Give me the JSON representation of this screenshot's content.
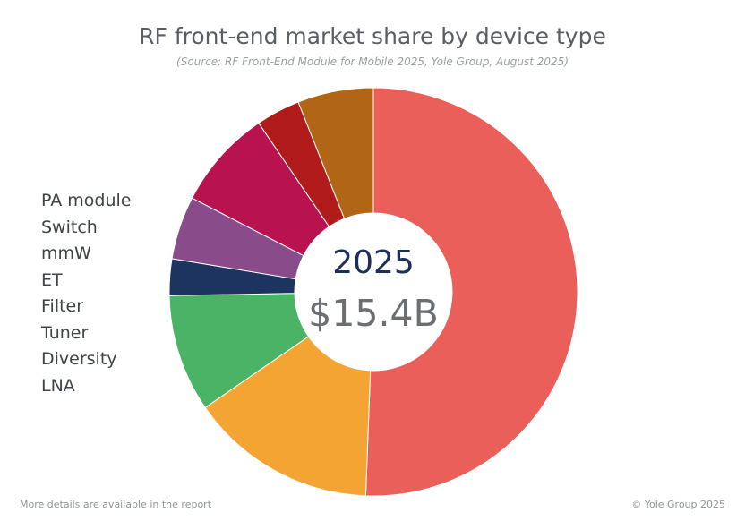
{
  "chart_data": {
    "type": "pie",
    "title": "RF front-end market share by device type",
    "subtitle": "(Source: RF Front-End Module for Mobile 2025, Yole Group, August 2025)",
    "center_year": "2025",
    "center_value": "$15.4B",
    "legend_position": "left",
    "categories": [
      "PA module",
      "Switch",
      "mmW",
      "ET",
      "Filter",
      "Tuner",
      "Diversity",
      "LNA"
    ],
    "slices": [
      {
        "name": "Filter",
        "value": 50.6,
        "color": "#ea5f5a"
      },
      {
        "name": "Switch",
        "value": 14.8,
        "color": "#f4a433"
      },
      {
        "name": "Tuner",
        "value": 9.3,
        "color": "#4bb366"
      },
      {
        "name": "ET",
        "value": 2.9,
        "color": "#1d3461"
      },
      {
        "name": "mmW",
        "value": 5.0,
        "color": "#8a4b8b"
      },
      {
        "name": "PA module",
        "value": 7.9,
        "color": "#b8134e"
      },
      {
        "name": "LNA",
        "value": 3.5,
        "color": "#b11b1b"
      },
      {
        "name": "Diversity",
        "value": 6.0,
        "color": "#b06615"
      }
    ]
  },
  "footer": {
    "left": "More details are available in the report",
    "right": "© Yole Group 2025"
  }
}
